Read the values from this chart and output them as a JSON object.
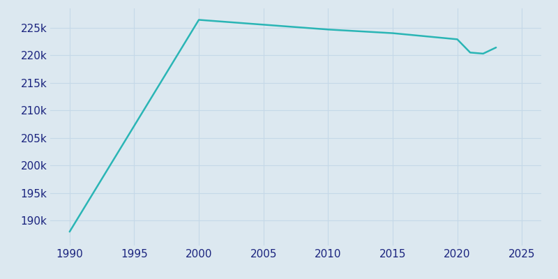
{
  "years": [
    1990,
    2000,
    2010,
    2015,
    2020,
    2021,
    2022,
    2023
  ],
  "population": [
    188004,
    226419,
    224669,
    224004,
    222891,
    220489,
    220294,
    221404
  ],
  "line_color": "#2ab5b5",
  "background_color": "#dce8f0",
  "plot_background_color": "#dce8f0",
  "grid_color": "#c5d8e8",
  "text_color": "#1a237e",
  "xlim": [
    1988.5,
    2026.5
  ],
  "ylim": [
    185500,
    228500
  ],
  "xticks": [
    1990,
    1995,
    2000,
    2005,
    2010,
    2015,
    2020,
    2025
  ],
  "yticks": [
    190000,
    195000,
    200000,
    205000,
    210000,
    215000,
    220000,
    225000
  ],
  "linewidth": 1.8,
  "tick_labelsize": 11
}
